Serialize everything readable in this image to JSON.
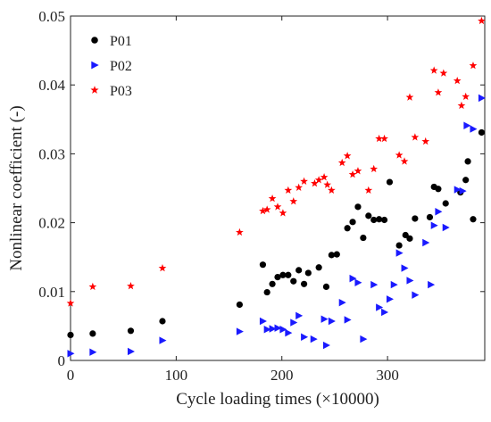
{
  "chart_data": {
    "type": "scatter",
    "xlabel": "Cycle loading times (×10000)",
    "ylabel": "Nonlinear coefficient (-)",
    "xlim": [
      0,
      392
    ],
    "ylim": [
      0,
      0.05
    ],
    "xticks": [
      0,
      100,
      200,
      300
    ],
    "yticks": [
      0,
      0.01,
      0.02,
      0.03,
      0.04,
      0.05
    ],
    "grid": false,
    "legend_position": "top-left",
    "series": [
      {
        "name": "P01",
        "marker": "circle",
        "color": "#000000",
        "points": [
          [
            0,
            0.0037
          ],
          [
            21,
            0.0039
          ],
          [
            57,
            0.0043
          ],
          [
            87,
            0.0057
          ],
          [
            160,
            0.0081
          ],
          [
            182,
            0.0139
          ],
          [
            186,
            0.0099
          ],
          [
            191,
            0.0111
          ],
          [
            196,
            0.0121
          ],
          [
            201,
            0.0124
          ],
          [
            206,
            0.0124
          ],
          [
            211,
            0.0115
          ],
          [
            216,
            0.0131
          ],
          [
            221,
            0.0111
          ],
          [
            225,
            0.0127
          ],
          [
            235,
            0.0135
          ],
          [
            242,
            0.0107
          ],
          [
            247,
            0.0153
          ],
          [
            252,
            0.0154
          ],
          [
            262,
            0.0192
          ],
          [
            267,
            0.0201
          ],
          [
            272,
            0.0223
          ],
          [
            277,
            0.0178
          ],
          [
            282,
            0.021
          ],
          [
            287,
            0.0204
          ],
          [
            292,
            0.0205
          ],
          [
            297,
            0.0204
          ],
          [
            302,
            0.0259
          ],
          [
            311,
            0.0167
          ],
          [
            317,
            0.0182
          ],
          [
            321,
            0.0177
          ],
          [
            326,
            0.0206
          ],
          [
            340,
            0.0208
          ],
          [
            344,
            0.0252
          ],
          [
            348,
            0.0249
          ],
          [
            355,
            0.0228
          ],
          [
            369,
            0.0244
          ],
          [
            374,
            0.0262
          ],
          [
            376,
            0.0289
          ],
          [
            381,
            0.0205
          ],
          [
            389,
            0.0331
          ]
        ]
      },
      {
        "name": "P02",
        "marker": "triangle-right",
        "color": "#1a1aff",
        "points": [
          [
            0,
            0.001
          ],
          [
            21,
            0.0012
          ],
          [
            57,
            0.0013
          ],
          [
            87,
            0.0029
          ],
          [
            160,
            0.0042
          ],
          [
            182,
            0.0057
          ],
          [
            186,
            0.0045
          ],
          [
            191,
            0.0046
          ],
          [
            196,
            0.0047
          ],
          [
            201,
            0.0045
          ],
          [
            206,
            0.004
          ],
          [
            211,
            0.0055
          ],
          [
            216,
            0.0065
          ],
          [
            221,
            0.0034
          ],
          [
            230,
            0.0031
          ],
          [
            240,
            0.006
          ],
          [
            242,
            0.0022
          ],
          [
            247,
            0.0057
          ],
          [
            257,
            0.0084
          ],
          [
            262,
            0.0059
          ],
          [
            267,
            0.0119
          ],
          [
            272,
            0.0113
          ],
          [
            277,
            0.0031
          ],
          [
            287,
            0.011
          ],
          [
            292,
            0.0077
          ],
          [
            297,
            0.007
          ],
          [
            302,
            0.0089
          ],
          [
            306,
            0.011
          ],
          [
            311,
            0.0156
          ],
          [
            316,
            0.0134
          ],
          [
            321,
            0.0116
          ],
          [
            326,
            0.0095
          ],
          [
            336,
            0.0171
          ],
          [
            341,
            0.011
          ],
          [
            344,
            0.0196
          ],
          [
            348,
            0.0216
          ],
          [
            355,
            0.0193
          ],
          [
            366,
            0.0248
          ],
          [
            371,
            0.0246
          ],
          [
            375,
            0.0341
          ],
          [
            381,
            0.0336
          ],
          [
            389,
            0.0381
          ]
        ]
      },
      {
        "name": "P03",
        "marker": "star",
        "color": "#ff0000",
        "points": [
          [
            0,
            0.0083
          ],
          [
            21,
            0.0107
          ],
          [
            57,
            0.0108
          ],
          [
            87,
            0.0134
          ],
          [
            160,
            0.0186
          ],
          [
            182,
            0.0217
          ],
          [
            186,
            0.0219
          ],
          [
            191,
            0.0235
          ],
          [
            196,
            0.0223
          ],
          [
            201,
            0.0214
          ],
          [
            206,
            0.0247
          ],
          [
            211,
            0.0231
          ],
          [
            216,
            0.0251
          ],
          [
            221,
            0.026
          ],
          [
            231,
            0.0257
          ],
          [
            235,
            0.0262
          ],
          [
            240,
            0.0266
          ],
          [
            243,
            0.0255
          ],
          [
            247,
            0.0247
          ],
          [
            257,
            0.0287
          ],
          [
            262,
            0.0297
          ],
          [
            267,
            0.027
          ],
          [
            272,
            0.0275
          ],
          [
            282,
            0.0247
          ],
          [
            287,
            0.0278
          ],
          [
            292,
            0.0322
          ],
          [
            297,
            0.0322
          ],
          [
            311,
            0.0298
          ],
          [
            316,
            0.0289
          ],
          [
            321,
            0.0382
          ],
          [
            326,
            0.0324
          ],
          [
            336,
            0.0318
          ],
          [
            344,
            0.0421
          ],
          [
            348,
            0.0389
          ],
          [
            353,
            0.0417
          ],
          [
            366,
            0.0406
          ],
          [
            370,
            0.037
          ],
          [
            374,
            0.0383
          ],
          [
            381,
            0.0428
          ],
          [
            389,
            0.0493
          ]
        ]
      }
    ]
  }
}
